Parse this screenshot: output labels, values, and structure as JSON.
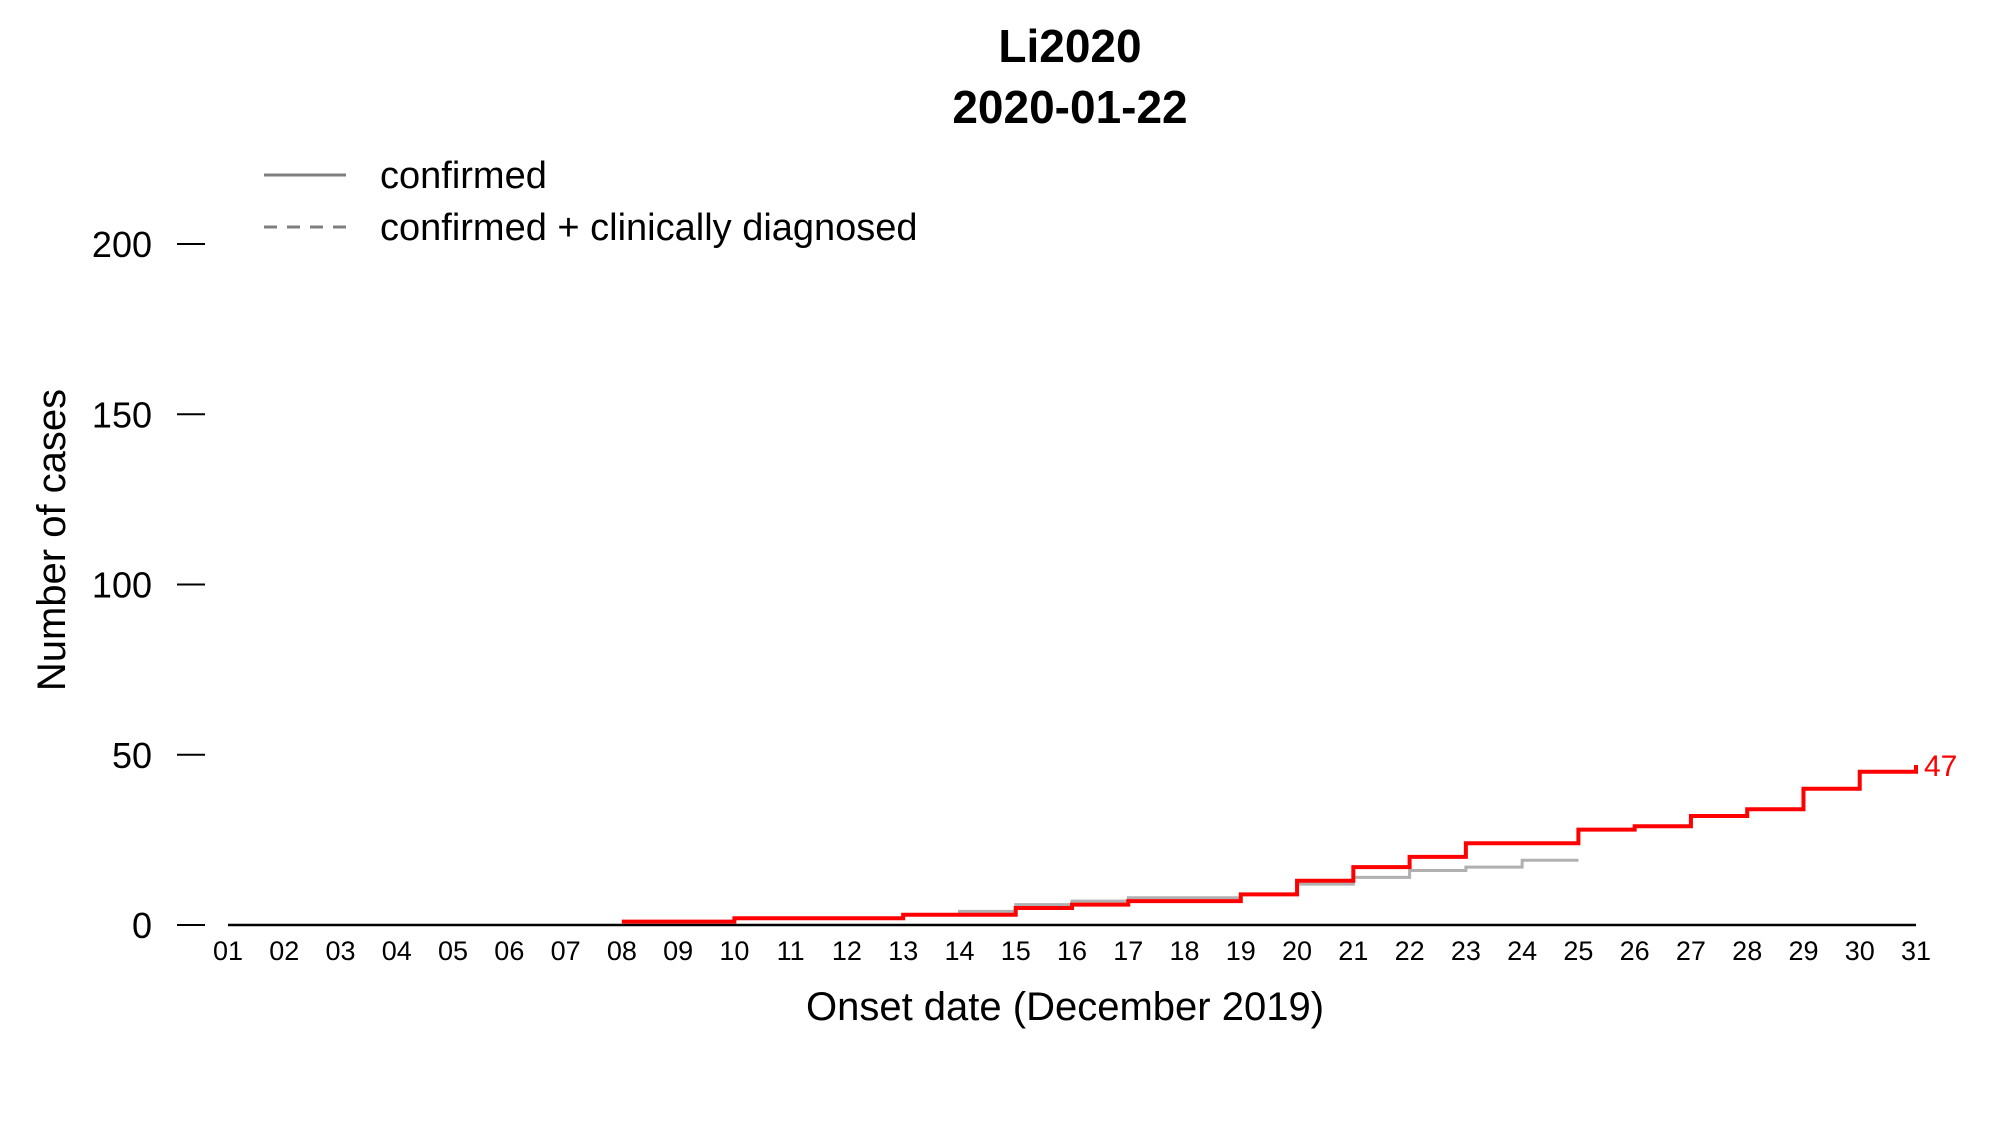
{
  "chart_data": {
    "type": "line",
    "title": "Li2020",
    "subtitle": "2020-01-22",
    "xlabel": "Onset date (December 2019)",
    "ylabel": "Number of cases",
    "ylim": [
      0,
      200
    ],
    "yticks": [
      0,
      50,
      100,
      150,
      200
    ],
    "x_tick_labels": [
      "01",
      "02",
      "03",
      "04",
      "05",
      "06",
      "07",
      "08",
      "09",
      "10",
      "11",
      "12",
      "13",
      "14",
      "15",
      "16",
      "17",
      "18",
      "19",
      "20",
      "21",
      "22",
      "23",
      "24",
      "25",
      "26",
      "27",
      "28",
      "29",
      "30",
      "31"
    ],
    "grid": false,
    "legend_position": "top-left",
    "legend": [
      {
        "label": "confirmed",
        "style": "solid",
        "color": "#7f7f7f"
      },
      {
        "label": "confirmed + clinically diagnosed",
        "style": "dashed",
        "color": "#7f7f7f"
      }
    ],
    "series": [
      {
        "color": "#b0b0b0",
        "step": true,
        "x": [
          8,
          9,
          10,
          11,
          12,
          13,
          14,
          15,
          16,
          17,
          18,
          19,
          20,
          21,
          22,
          23,
          24,
          25
        ],
        "y": [
          1,
          1,
          2,
          2,
          2,
          3,
          4,
          6,
          7,
          8,
          8,
          9,
          12,
          14,
          16,
          17,
          19,
          19
        ]
      },
      {
        "color": "#ff0000",
        "step": true,
        "x": [
          8,
          9,
          10,
          11,
          12,
          13,
          14,
          15,
          16,
          17,
          18,
          19,
          20,
          21,
          22,
          23,
          24,
          25,
          26,
          27,
          28,
          29,
          30,
          31
        ],
        "y": [
          1,
          1,
          2,
          2,
          2,
          3,
          3,
          5,
          6,
          7,
          7,
          9,
          13,
          17,
          20,
          24,
          24,
          28,
          29,
          32,
          34,
          40,
          45,
          47
        ]
      }
    ],
    "annotations": [
      {
        "text": "47",
        "color": "#ff0000"
      }
    ]
  }
}
